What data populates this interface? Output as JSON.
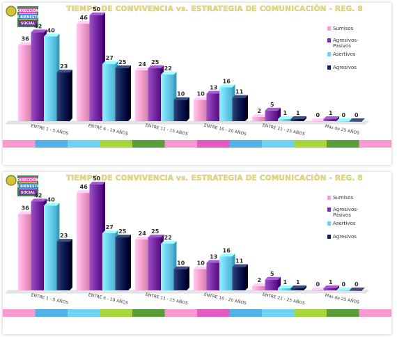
{
  "chart_data": [
    {
      "type": "bar",
      "title": "TIEMPO DE CONVIVENCIA  vs.  ESTRATEGIA DE COMUNICACIÒN  - REG. 8",
      "categories": [
        "ENTRE 1 - 5 AÑOS",
        "ENTRE 6 - 10 AÑOS",
        "ENTRE 11 - 15 AÑOS",
        "ENTRE 16 - 20 AÑOS",
        "ENTRE 21 - 25 AÑOS",
        "Màs de 25 AÑOS"
      ],
      "series": [
        {
          "name": "Sumisos",
          "color": "#f7a3cf",
          "values": [
            36,
            46,
            24,
            10,
            2,
            0
          ]
        },
        {
          "name": "Agresivos-Pasivos",
          "color": "#7b2fa6",
          "values": [
            42,
            50,
            25,
            13,
            5,
            1
          ]
        },
        {
          "name": "Asertivos",
          "color": "#6fd3f4",
          "values": [
            40,
            27,
            22,
            16,
            1,
            0
          ]
        },
        {
          "name": "Agresivos",
          "color": "#0f2257",
          "values": [
            23,
            25,
            10,
            11,
            1,
            0
          ]
        }
      ],
      "ylim": [
        0,
        50
      ],
      "legend_position": "right",
      "grid": false
    },
    {
      "type": "bar",
      "title": "TIEMPO DE CONVIVENCIA  vs.  ESTRATEGIA DE COMUNICACIÒN  - REG. 8",
      "categories": [
        "ENTRE 1 - 5 AÑOS",
        "ENTRE 6 - 10 AÑOS",
        "ENTRE 11 - 15 AÑOS",
        "ENTRE 16 - 20 AÑOS",
        "ENTRE 21 - 25 AÑOS",
        "Màs de 25 AÑOS"
      ],
      "series": [
        {
          "name": "Sumisos",
          "color": "#f7a3cf",
          "values": [
            36,
            46,
            24,
            10,
            2,
            0
          ]
        },
        {
          "name": "Agresivos-Pasivos",
          "color": "#7b2fa6",
          "values": [
            42,
            50,
            25,
            13,
            5,
            1
          ]
        },
        {
          "name": "Asertivos",
          "color": "#6fd3f4",
          "values": [
            40,
            27,
            22,
            16,
            1,
            0
          ]
        },
        {
          "name": "Agresivos",
          "color": "#0f2257",
          "values": [
            23,
            25,
            10,
            11,
            1,
            0
          ]
        }
      ],
      "ylim": [
        0,
        50
      ],
      "legend_position": "right",
      "grid": false
    }
  ],
  "logo": {
    "lines": [
      "DIRECCIÓN",
      "DE BIENESTAR",
      "SOCIAL"
    ]
  },
  "bottom_strip_colors": [
    "#f79ad2",
    "#52b3e8",
    "#6fd3f4",
    "#a7d63c",
    "#5a9e3a",
    "#f79ad2",
    "#e55bc4",
    "#52b3e8",
    "#6fd3f4",
    "#a7d63c",
    "#5a9e3a",
    "#f79ad2"
  ]
}
